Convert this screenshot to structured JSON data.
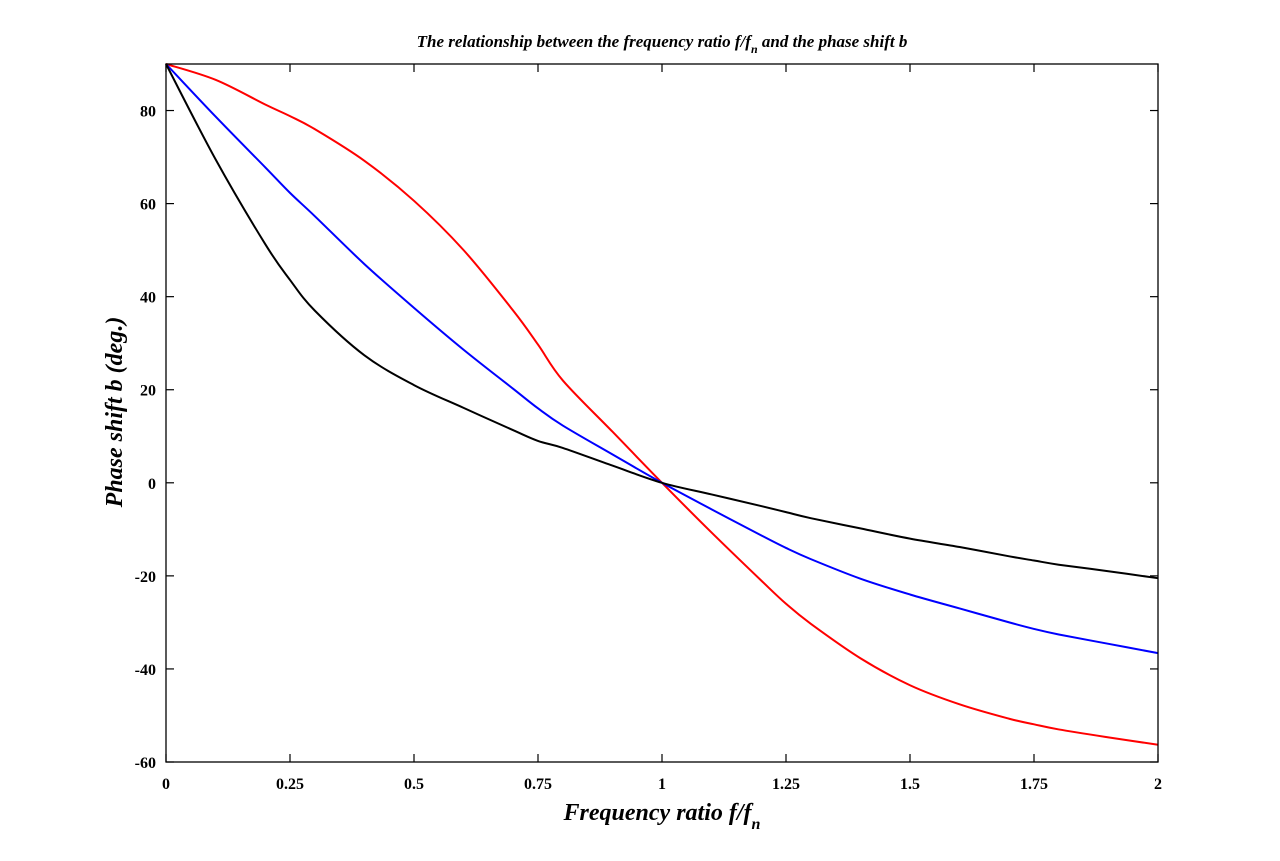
{
  "chart_data": {
    "type": "line",
    "title": {
      "main": "The relationship between the frequency ratio f/f",
      "sub": "n",
      "tail": " and the phase shift b"
    },
    "xlabel": {
      "main": "Frequency ratio f/f",
      "sub": "n"
    },
    "ylabel": "Phase shift b (deg.)",
    "xlim": [
      0,
      2
    ],
    "ylim": [
      -60,
      90
    ],
    "xticks": [
      0,
      0.25,
      0.5,
      0.75,
      1,
      1.25,
      1.5,
      1.75,
      2
    ],
    "xtick_labels": [
      "0",
      "0.25",
      "0.5",
      "0.75",
      "1",
      "1.25",
      "1.5",
      "1.75",
      "2"
    ],
    "yticks": [
      -60,
      -40,
      -20,
      0,
      20,
      40,
      60,
      80
    ],
    "ytick_labels": [
      "-60",
      "-40",
      "-20",
      "0",
      "20",
      "40",
      "60",
      "80"
    ],
    "grid": false,
    "x": [
      0,
      0.1,
      0.2,
      0.25,
      0.3,
      0.4,
      0.5,
      0.6,
      0.7,
      0.75,
      0.8,
      0.9,
      1.0,
      1.1,
      1.2,
      1.25,
      1.3,
      1.4,
      1.5,
      1.6,
      1.7,
      1.75,
      1.8,
      1.9,
      2.0
    ],
    "series": [
      {
        "color": "#ff0000",
        "values": [
          90,
          86.6,
          81.3,
          78.8,
          76,
          69.2,
          60.6,
          50,
          37,
          29.7,
          22,
          11,
          0,
          -10.7,
          -21,
          -26,
          -30.3,
          -37.7,
          -43.5,
          -47.6,
          -50.7,
          -51.9,
          -53,
          -54.7,
          -56.3
        ]
      },
      {
        "color": "#0000ff",
        "values": [
          90,
          78.7,
          67.8,
          62.3,
          57.3,
          47,
          37.6,
          28.6,
          20.2,
          16,
          12.3,
          6.1,
          0,
          -5.7,
          -11.3,
          -14,
          -16.4,
          -20.6,
          -24,
          -27,
          -30,
          -31.4,
          -32.6,
          -34.6,
          -36.6
        ]
      },
      {
        "color": "#000000",
        "values": [
          90,
          69.5,
          51.3,
          43.6,
          37,
          27.4,
          21,
          16.1,
          11.3,
          9,
          7.5,
          3.7,
          0,
          -2.5,
          -5,
          -6.3,
          -7.6,
          -9.8,
          -12,
          -13.8,
          -15.8,
          -16.7,
          -17.6,
          -19,
          -20.5
        ]
      }
    ]
  }
}
